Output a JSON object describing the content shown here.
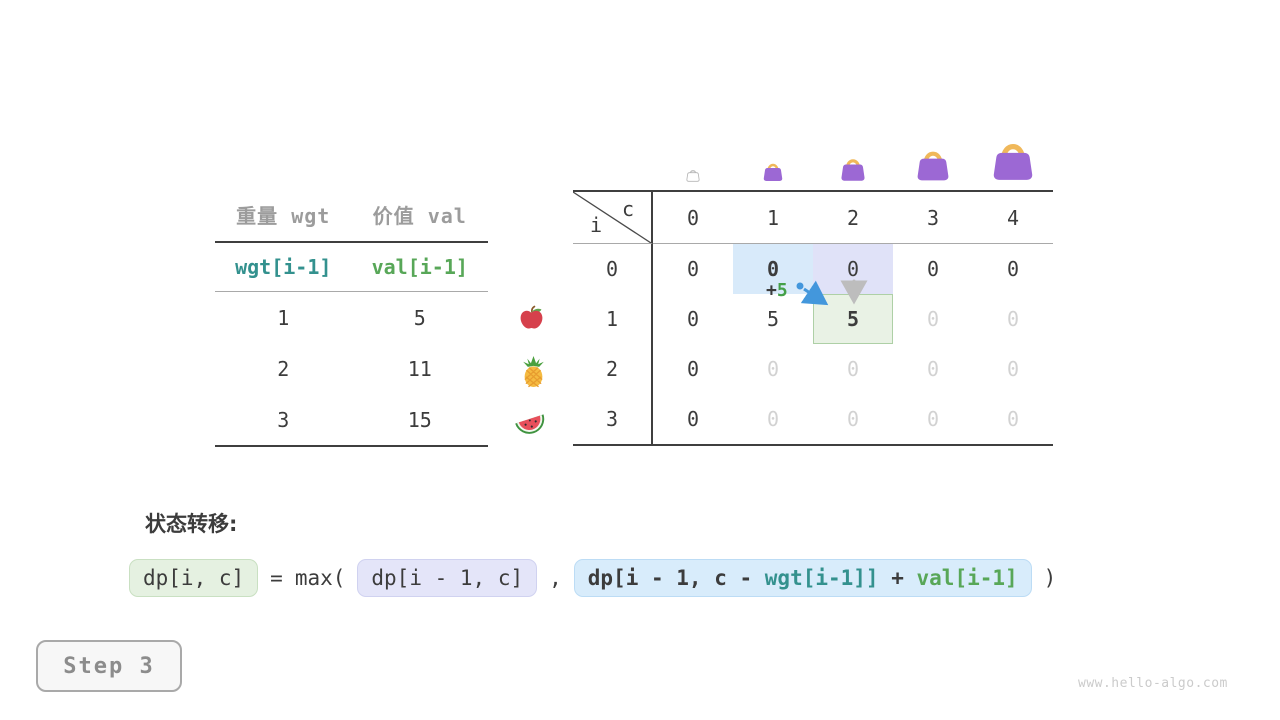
{
  "item_table": {
    "headers": [
      "重量 wgt",
      "价值 val"
    ],
    "subheaders": [
      "wgt[i-1]",
      "val[i-1]"
    ],
    "rows": [
      {
        "wgt": "1",
        "val": "5",
        "icon": "apple-icon"
      },
      {
        "wgt": "2",
        "val": "11",
        "icon": "pineapple-icon"
      },
      {
        "wgt": "3",
        "val": "15",
        "icon": "watermelon-icon"
      }
    ]
  },
  "dp_table": {
    "corner": {
      "col_var": "c",
      "row_var": "i"
    },
    "col_labels": [
      "0",
      "1",
      "2",
      "3",
      "4"
    ],
    "row_labels": [
      "0",
      "1",
      "2",
      "3"
    ],
    "cells": [
      [
        "0",
        "0",
        "0",
        "0",
        "0"
      ],
      [
        "0",
        "5",
        "5",
        "0",
        "0"
      ],
      [
        "0",
        "0",
        "0",
        "0",
        "0"
      ],
      [
        "0",
        "0",
        "0",
        "0",
        "0"
      ]
    ],
    "cell_styles": [
      [
        "n",
        "b",
        "n",
        "n",
        "n"
      ],
      [
        "n",
        "n",
        "b",
        "d",
        "d"
      ],
      [
        "n",
        "d",
        "d",
        "d",
        "d"
      ],
      [
        "n",
        "d",
        "d",
        "d",
        "d"
      ]
    ],
    "highlights": [
      {
        "row": 0,
        "col": 1,
        "type": "blue"
      },
      {
        "row": 0,
        "col": 2,
        "type": "lavender"
      },
      {
        "row": 1,
        "col": 2,
        "type": "green"
      }
    ],
    "capacity_icons": [
      "empty-bag-icon",
      "bag-small-icon",
      "bag-medium-icon",
      "bag-large-icon",
      "bag-xlarge-icon"
    ]
  },
  "annotation": {
    "add_plus": "+",
    "add_value": "5"
  },
  "transition": {
    "heading": "状态转移:",
    "lhs": "dp[i, c]",
    "equals": "=",
    "max_open": "max(",
    "option1": "dp[i - 1, c]",
    "comma": ",",
    "option2_parts": [
      "dp[i - 1, c - ",
      "wgt[i-1]]",
      " + ",
      "val[i-1]"
    ],
    "close_paren": ")"
  },
  "step_badge": "Step 3",
  "watermark": "www.hello-algo.com",
  "colors": {
    "text_dark": "#3c3c3c",
    "text_gray_header": "#9c9c9c",
    "text_dim": "#d2d2d2",
    "teal": "#33918e",
    "green": "#58a758",
    "green_bright": "#44a048",
    "hl_blue": "#d8eafa",
    "hl_lavender": "#e0e2f8",
    "hl_green_fill": "#e9f2e5",
    "hl_green_border": "#aed0a6",
    "box_blue_fill": "#d8ecfb",
    "box_lavender_fill": "#e4e5f9",
    "box_green_fill": "#e5f1e1",
    "bag_purple": "#9c68d4",
    "bag_handle": "#f0b85a",
    "arrow_blue": "#4397dc",
    "arrow_gray": "#bdbdbd",
    "line_dark": "#3f3f3f",
    "line_light": "#a9a9a9"
  }
}
